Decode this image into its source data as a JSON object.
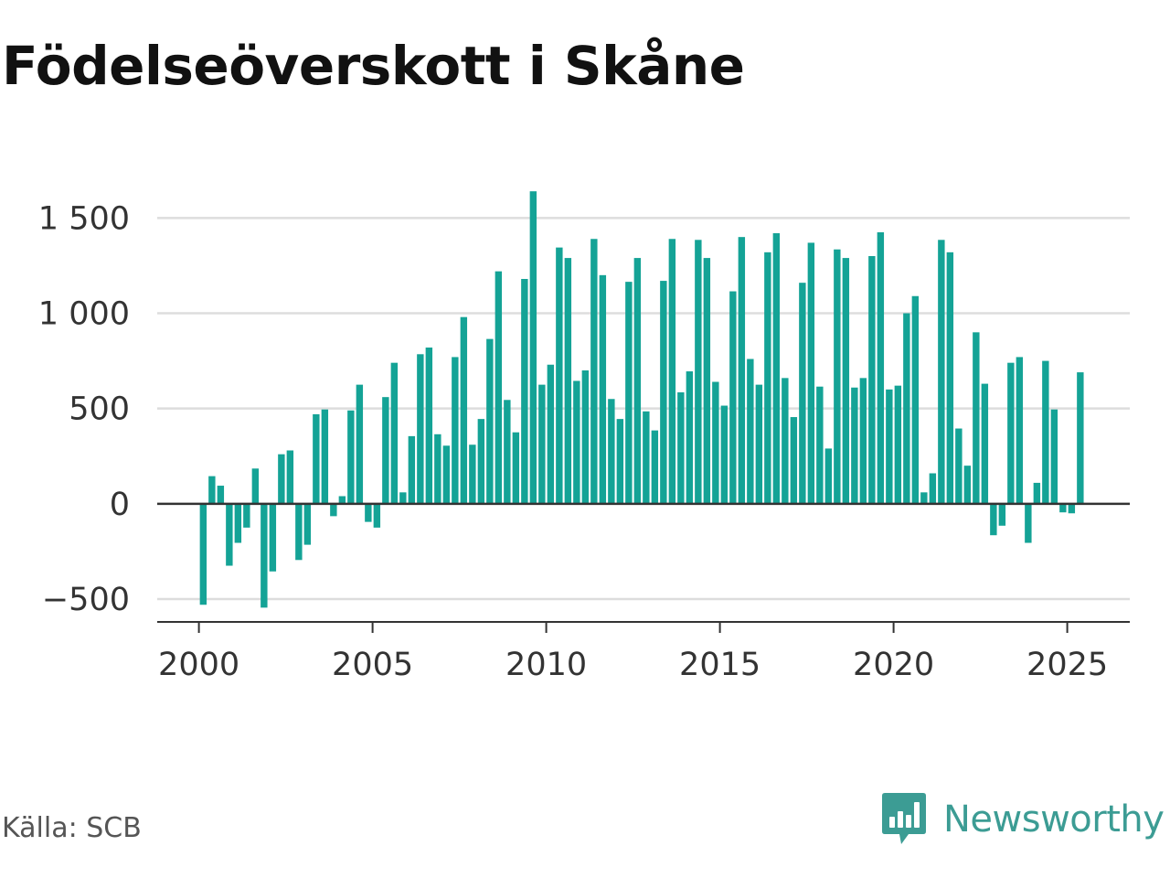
{
  "title": "Födelseöverskott i Skåne",
  "source": "Källa: SCB",
  "brand": {
    "name": "Newsworthy",
    "logo_icon": "newsworthy-chart-bubble-icon",
    "color": "#3c9c94"
  },
  "chart_data": {
    "type": "bar",
    "title": "Födelseöverskott i Skåne",
    "xlabel": "",
    "ylabel": "",
    "color": "#14a396",
    "grid": true,
    "frequency": "quarterly",
    "x_ticks": [
      "2000",
      "2005",
      "2010",
      "2015",
      "2020",
      "2025"
    ],
    "y_ticks": [
      "−500",
      "0",
      "500",
      "1 000",
      "1 500"
    ],
    "y_tick_values": [
      -500,
      0,
      500,
      1000,
      1500
    ],
    "xlim": [
      1998.8,
      2026.8
    ],
    "ylim": [
      -620,
      1660
    ],
    "categories": [
      "2000 Q1",
      "2000 Q2",
      "2000 Q3",
      "2000 Q4",
      "2001 Q1",
      "2001 Q2",
      "2001 Q3",
      "2001 Q4",
      "2002 Q1",
      "2002 Q2",
      "2002 Q3",
      "2002 Q4",
      "2003 Q1",
      "2003 Q2",
      "2003 Q3",
      "2003 Q4",
      "2004 Q1",
      "2004 Q2",
      "2004 Q3",
      "2004 Q4",
      "2005 Q1",
      "2005 Q2",
      "2005 Q3",
      "2005 Q4",
      "2006 Q1",
      "2006 Q2",
      "2006 Q3",
      "2006 Q4",
      "2007 Q1",
      "2007 Q2",
      "2007 Q3",
      "2007 Q4",
      "2008 Q1",
      "2008 Q2",
      "2008 Q3",
      "2008 Q4",
      "2009 Q1",
      "2009 Q2",
      "2009 Q3",
      "2009 Q4",
      "2010 Q1",
      "2010 Q2",
      "2010 Q3",
      "2010 Q4",
      "2011 Q1",
      "2011 Q2",
      "2011 Q3",
      "2011 Q4",
      "2012 Q1",
      "2012 Q2",
      "2012 Q3",
      "2012 Q4",
      "2013 Q1",
      "2013 Q2",
      "2013 Q3",
      "2013 Q4",
      "2014 Q1",
      "2014 Q2",
      "2014 Q3",
      "2014 Q4",
      "2015 Q1",
      "2015 Q2",
      "2015 Q3",
      "2015 Q4",
      "2016 Q1",
      "2016 Q2",
      "2016 Q3",
      "2016 Q4",
      "2017 Q1",
      "2017 Q2",
      "2017 Q3",
      "2017 Q4",
      "2018 Q1",
      "2018 Q2",
      "2018 Q3",
      "2018 Q4",
      "2019 Q1",
      "2019 Q2",
      "2019 Q3",
      "2019 Q4",
      "2020 Q1",
      "2020 Q2",
      "2020 Q3",
      "2020 Q4",
      "2021 Q1",
      "2021 Q2",
      "2021 Q3",
      "2021 Q4",
      "2022 Q1",
      "2022 Q2",
      "2022 Q3",
      "2022 Q4",
      "2023 Q1",
      "2023 Q2",
      "2023 Q3",
      "2023 Q4",
      "2024 Q1",
      "2024 Q2",
      "2024 Q3",
      "2024 Q4",
      "2025 Q1",
      "2025 Q2"
    ],
    "values": [
      -530,
      145,
      95,
      -325,
      -205,
      -125,
      185,
      -545,
      -355,
      260,
      280,
      -295,
      -215,
      470,
      495,
      -65,
      40,
      490,
      625,
      -95,
      -125,
      560,
      740,
      60,
      355,
      785,
      820,
      365,
      305,
      770,
      980,
      310,
      445,
      865,
      1220,
      545,
      375,
      1180,
      1640,
      625,
      730,
      1345,
      1290,
      645,
      700,
      1390,
      1200,
      550,
      445,
      1165,
      1290,
      485,
      385,
      1170,
      1390,
      585,
      695,
      1385,
      1290,
      640,
      515,
      1115,
      1400,
      760,
      625,
      1320,
      1420,
      660,
      455,
      1160,
      1370,
      615,
      290,
      1335,
      1290,
      610,
      660,
      1300,
      1425,
      600,
      620,
      1000,
      1090,
      60,
      160,
      1385,
      1320,
      395,
      200,
      900,
      630,
      -165,
      -115,
      740,
      770,
      -205,
      110,
      750,
      495,
      -45,
      -50,
      690
    ]
  }
}
